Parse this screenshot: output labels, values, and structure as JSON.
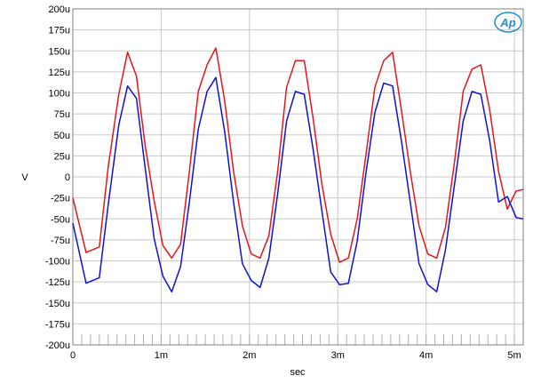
{
  "logo": {
    "text": "Ap",
    "color": "#1f8fd0"
  },
  "chart_data": {
    "type": "line",
    "title": "",
    "xlabel": "sec",
    "ylabel": "V",
    "xlim": [
      0,
      0.0051
    ],
    "ylim": [
      -0.0002,
      0.0002
    ],
    "grid": true,
    "x_ticks": [
      {
        "value": 0,
        "label": "0"
      },
      {
        "value": 0.001,
        "label": "1m"
      },
      {
        "value": 0.002,
        "label": "2m"
      },
      {
        "value": 0.003,
        "label": "3m"
      },
      {
        "value": 0.004,
        "label": "4m"
      },
      {
        "value": 0.005,
        "label": "5m"
      }
    ],
    "y_ticks": [
      {
        "value": 0.0002,
        "label": "200u"
      },
      {
        "value": 0.000175,
        "label": "175u"
      },
      {
        "value": 0.00015,
        "label": "150u"
      },
      {
        "value": 0.000125,
        "label": "125u"
      },
      {
        "value": 0.0001,
        "label": "100u"
      },
      {
        "value": 7.5e-05,
        "label": "75u"
      },
      {
        "value": 5e-05,
        "label": "50u"
      },
      {
        "value": 2.5e-05,
        "label": "25u"
      },
      {
        "value": 0,
        "label": "0"
      },
      {
        "value": -2.5e-05,
        "label": "-25u"
      },
      {
        "value": -5e-05,
        "label": "-50u"
      },
      {
        "value": -7.5e-05,
        "label": "-75u"
      },
      {
        "value": -0.0001,
        "label": "-100u"
      },
      {
        "value": -0.000125,
        "label": "-125u"
      },
      {
        "value": -0.00015,
        "label": "-150u"
      },
      {
        "value": -0.000175,
        "label": "-175u"
      },
      {
        "value": -0.0002,
        "label": "-200u"
      }
    ],
    "series": [
      {
        "color": "#e8141c",
        "x": [
          0,
          0.00015,
          0.0003,
          0.0004,
          0.00052,
          0.00062,
          0.00072,
          0.00082,
          0.00092,
          0.00102,
          0.00112,
          0.00122,
          0.00132,
          0.00142,
          0.00152,
          0.00162,
          0.00172,
          0.00182,
          0.00192,
          0.00202,
          0.00212,
          0.00222,
          0.00232,
          0.00242,
          0.00252,
          0.00262,
          0.00272,
          0.00282,
          0.00292,
          0.00302,
          0.00312,
          0.00322,
          0.00332,
          0.00342,
          0.00352,
          0.00362,
          0.00372,
          0.00382,
          0.00392,
          0.00402,
          0.00412,
          0.00422,
          0.00432,
          0.00442,
          0.00452,
          0.00462,
          0.00472,
          0.00482,
          0.00492,
          0.00502,
          0.0051
        ],
        "y": [
          -2.5e-05,
          -9e-05,
          -8e-05,
          1e-05,
          0.0001,
          0.000145,
          0.00012,
          4e-05,
          -3e-05,
          -8e-05,
          -0.0001,
          -8e-05,
          1e-05,
          0.0001,
          0.000135,
          0.00015,
          9e-05,
          1e-05,
          -6e-05,
          -9e-05,
          -0.0001,
          -7e-05,
          1e-05,
          0.000105,
          0.00014,
          0.000135,
          7e-05,
          -5e-06,
          -7e-05,
          -0.0001,
          -0.0001,
          -5e-05,
          3e-05,
          0.000105,
          0.00014,
          0.000145,
          8e-05,
          1e-05,
          -6e-05,
          -9e-05,
          -0.0001,
          -6e-05,
          2e-05,
          0.0001,
          0.00013,
          0.00013,
          8e-05,
          1e-05,
          -4e-05,
          -1.5e-05,
          -1.5e-05
        ]
      },
      {
        "color": "#1010d8",
        "x": [
          0,
          0.00015,
          0.0003,
          0.0004,
          0.00052,
          0.00062,
          0.00072,
          0.00082,
          0.00092,
          0.00102,
          0.00112,
          0.00122,
          0.00132,
          0.00142,
          0.00152,
          0.00162,
          0.00172,
          0.00182,
          0.00192,
          0.00202,
          0.00212,
          0.00222,
          0.00232,
          0.00242,
          0.00252,
          0.00262,
          0.00272,
          0.00282,
          0.00292,
          0.00302,
          0.00312,
          0.00322,
          0.00332,
          0.00342,
          0.00352,
          0.00362,
          0.00372,
          0.00382,
          0.00392,
          0.00402,
          0.00412,
          0.00422,
          0.00432,
          0.00442,
          0.00452,
          0.00462,
          0.00472,
          0.00482,
          0.00492,
          0.00502,
          0.0051
        ],
        "y": [
          -5.5e-05,
          -0.00013,
          -0.00012,
          -3e-05,
          6e-05,
          0.00011,
          9e-05,
          1e-05,
          -7e-05,
          -0.00012,
          -0.000135,
          -0.00011,
          -3e-05,
          6e-05,
          0.0001,
          0.00012,
          5e-05,
          -3e-05,
          -0.0001,
          -0.000125,
          -0.00013,
          -0.0001,
          -2e-05,
          7e-05,
          0.0001,
          0.0001,
          3e-05,
          -4e-05,
          -0.00011,
          -0.00013,
          -0.000125,
          -8e-05,
          5e-06,
          8e-05,
          0.00011,
          0.00011,
          4e-05,
          -3e-05,
          -0.0001,
          -0.00013,
          -0.000135,
          -9e-05,
          -1e-05,
          7e-05,
          0.0001,
          0.0001,
          4e-05,
          -3e-05,
          -2e-05,
          -5e-05,
          -5e-05
        ]
      }
    ]
  }
}
